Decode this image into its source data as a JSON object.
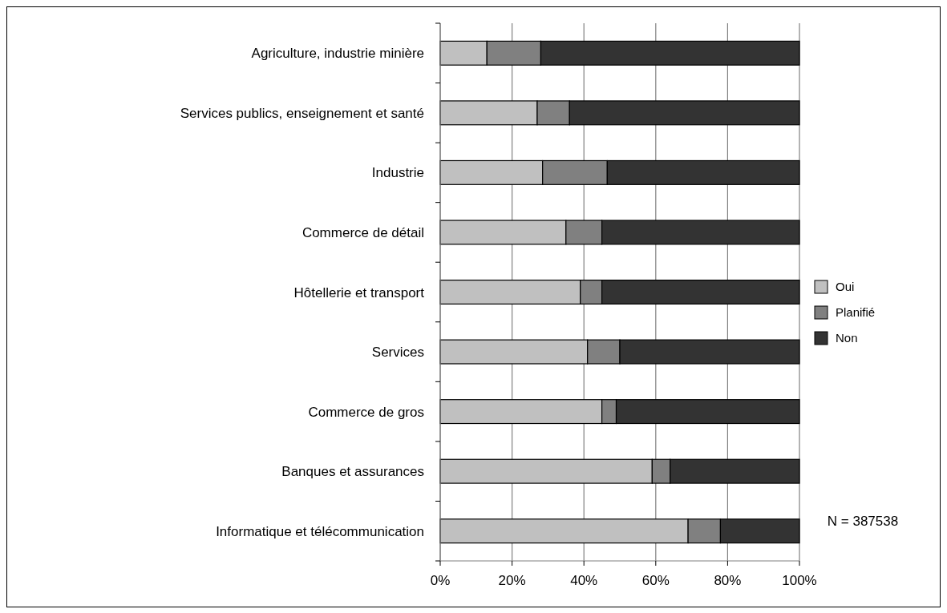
{
  "chart_data": {
    "type": "bar",
    "orientation": "horizontal",
    "stacked": true,
    "categories": [
      "Agriculture, industrie minière",
      "Services publics, enseignement et santé",
      "Industrie",
      "Commerce de détail",
      "Hôtellerie et transport",
      "Services",
      "Commerce de gros",
      "Banques et assurances",
      "Informatique et télécommunication"
    ],
    "series": [
      {
        "name": "Oui",
        "color": "#c0c0c0",
        "values": [
          13,
          27,
          28.5,
          35,
          39,
          41,
          45,
          59,
          69
        ]
      },
      {
        "name": "Planifié",
        "color": "#808080",
        "values": [
          15,
          9,
          18,
          10,
          6,
          9,
          4,
          5,
          9
        ]
      },
      {
        "name": "Non",
        "color": "#333333",
        "values": [
          72,
          64,
          53.5,
          55,
          55,
          50,
          51,
          36,
          22
        ]
      }
    ],
    "xlim": [
      0,
      100
    ],
    "xticks": [
      {
        "value": 0,
        "label": "0%"
      },
      {
        "value": 20,
        "label": "20%"
      },
      {
        "value": 40,
        "label": "40%"
      },
      {
        "value": 60,
        "label": "60%"
      },
      {
        "value": 80,
        "label": "80%"
      },
      {
        "value": 100,
        "label": "100%"
      }
    ],
    "grid": "x",
    "legend": "right",
    "annotations": [
      "N = 387538"
    ]
  }
}
